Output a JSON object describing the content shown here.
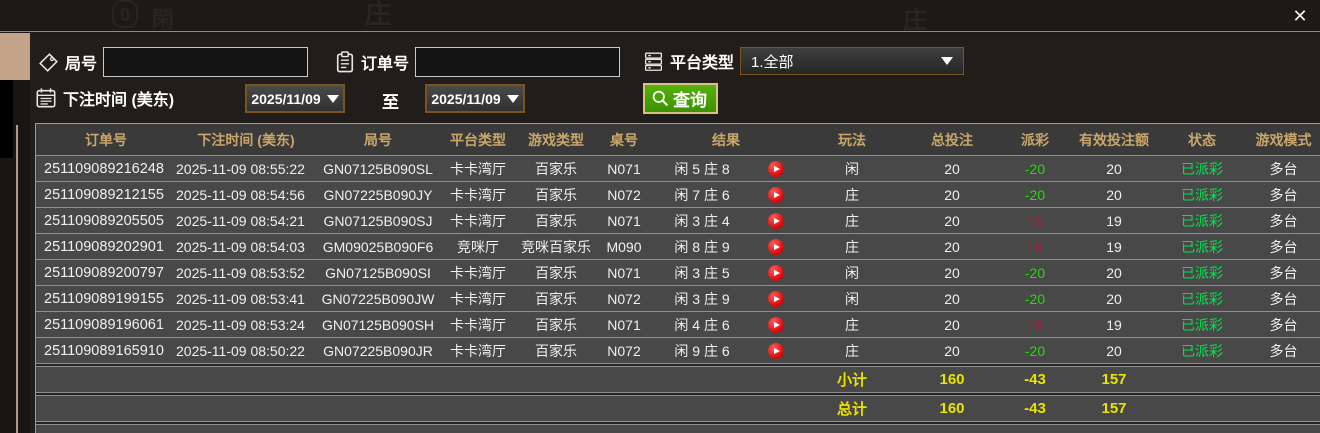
{
  "window": {
    "close_label": "✕"
  },
  "background": {
    "watermarks": [
      "0",
      "閑",
      "庄",
      "庄"
    ]
  },
  "filters": {
    "round_label": "局号",
    "round_value": "",
    "order_label": "订单号",
    "order_value": "",
    "platform_label": "平台类型",
    "platform_value": "1.全部",
    "bet_time_label": "下注时间 (美东)",
    "date_from": "2025/11/09",
    "to_label": "至",
    "date_to": "2025/11/09",
    "search_label": "查询"
  },
  "colors": {
    "accent_gold": "#c9a66a",
    "payout_negative_green": "#21dc06",
    "payout_positive_red": "#c01334",
    "status_green": "#00e34b",
    "summary_yellow": "#e8e400",
    "search_button_green": "#46a206",
    "border_brown": "#7a5420"
  },
  "table": {
    "headers": [
      "订单号",
      "下注时间 (美东)",
      "局号",
      "平台类型",
      "游戏类型",
      "桌号",
      "结果",
      "玩法",
      "总投注",
      "派彩",
      "有效投注额",
      "状态",
      "游戏模式"
    ],
    "rows": [
      {
        "order": "251109089216248",
        "time": "2025-11-09 08:55:22",
        "round": "GN07125B090SL",
        "platform": "卡卡湾厅",
        "game": "百家乐",
        "table_no": "N071",
        "result": "闲 5 庄 8",
        "bet_type": "闲",
        "total_bet": "20",
        "payout": "-20",
        "payout_color": "green",
        "valid_bet": "20",
        "status": "已派彩",
        "mode": "多台"
      },
      {
        "order": "251109089212155",
        "time": "2025-11-09 08:54:56",
        "round": "GN07225B090JY",
        "platform": "卡卡湾厅",
        "game": "百家乐",
        "table_no": "N072",
        "result": "闲 7 庄 6",
        "bet_type": "庄",
        "total_bet": "20",
        "payout": "-20",
        "payout_color": "green",
        "valid_bet": "20",
        "status": "已派彩",
        "mode": "多台"
      },
      {
        "order": "251109089205505",
        "time": "2025-11-09 08:54:21",
        "round": "GN07125B090SJ",
        "platform": "卡卡湾厅",
        "game": "百家乐",
        "table_no": "N071",
        "result": "闲 3 庄 4",
        "bet_type": "庄",
        "total_bet": "20",
        "payout": "19",
        "payout_color": "red",
        "valid_bet": "19",
        "status": "已派彩",
        "mode": "多台"
      },
      {
        "order": "251109089202901",
        "time": "2025-11-09 08:54:03",
        "round": "GM09025B090F6",
        "platform": "竞咪厅",
        "game": "竞咪百家乐",
        "table_no": "M090",
        "result": "闲 8 庄 9",
        "bet_type": "庄",
        "total_bet": "20",
        "payout": "19",
        "payout_color": "red",
        "valid_bet": "19",
        "status": "已派彩",
        "mode": "多台"
      },
      {
        "order": "251109089200797",
        "time": "2025-11-09 08:53:52",
        "round": "GN07125B090SI",
        "platform": "卡卡湾厅",
        "game": "百家乐",
        "table_no": "N071",
        "result": "闲 3 庄 5",
        "bet_type": "闲",
        "total_bet": "20",
        "payout": "-20",
        "payout_color": "green",
        "valid_bet": "20",
        "status": "已派彩",
        "mode": "多台"
      },
      {
        "order": "251109089199155",
        "time": "2025-11-09 08:53:41",
        "round": "GN07225B090JW",
        "platform": "卡卡湾厅",
        "game": "百家乐",
        "table_no": "N072",
        "result": "闲 3 庄 9",
        "bet_type": "闲",
        "total_bet": "20",
        "payout": "-20",
        "payout_color": "green",
        "valid_bet": "20",
        "status": "已派彩",
        "mode": "多台"
      },
      {
        "order": "251109089196061",
        "time": "2025-11-09 08:53:24",
        "round": "GN07125B090SH",
        "platform": "卡卡湾厅",
        "game": "百家乐",
        "table_no": "N071",
        "result": "闲 4 庄 6",
        "bet_type": "庄",
        "total_bet": "20",
        "payout": "19",
        "payout_color": "red",
        "valid_bet": "19",
        "status": "已派彩",
        "mode": "多台"
      },
      {
        "order": "251109089165910",
        "time": "2025-11-09 08:50:22",
        "round": "GN07225B090JR",
        "platform": "卡卡湾厅",
        "game": "百家乐",
        "table_no": "N072",
        "result": "闲 9 庄 6",
        "bet_type": "庄",
        "total_bet": "20",
        "payout": "-20",
        "payout_color": "green",
        "valid_bet": "20",
        "status": "已派彩",
        "mode": "多台"
      }
    ],
    "subtotal": {
      "label": "小计",
      "total_bet": "160",
      "payout": "-43",
      "valid_bet": "157"
    },
    "grand_total": {
      "label": "总计",
      "total_bet": "160",
      "payout": "-43",
      "valid_bet": "157"
    }
  }
}
